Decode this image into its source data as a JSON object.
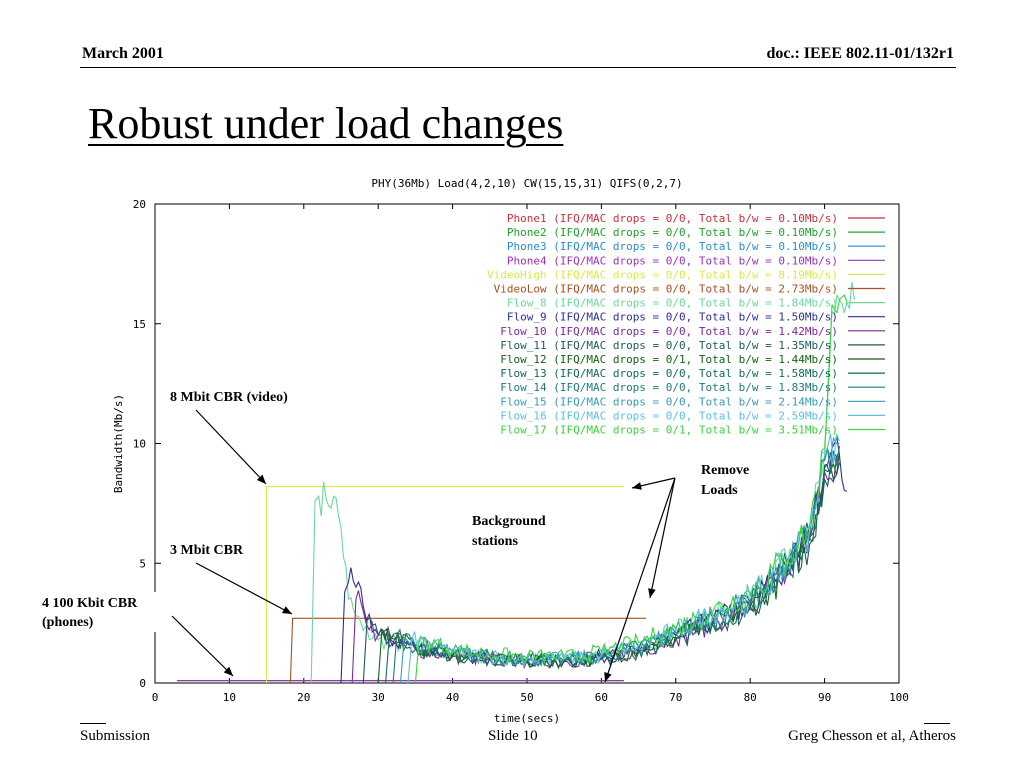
{
  "header": {
    "left": "March  2001",
    "right": "doc.: IEEE 802.11-01/132r1"
  },
  "slide_title": "Robust under load changes",
  "footer": {
    "left": "Submission",
    "center": "Slide 10",
    "right": "Greg Chesson et al, Atheros"
  },
  "annotations": [
    {
      "id": "video",
      "text": "8 Mbit CBR (video)"
    },
    {
      "id": "cbr3",
      "text": "3 Mbit CBR"
    },
    {
      "id": "phones",
      "line1": "4 100 Kbit CBR",
      "line2": "(phones)"
    },
    {
      "id": "background",
      "line1": "Background",
      "line2": "stations"
    },
    {
      "id": "remove",
      "line1": "Remove",
      "line2": "Loads"
    }
  ],
  "chart_data": {
    "type": "line",
    "title": "PHY(36Mb) Load(4,2,10) CW(15,15,31) QIFS(0,2,7)",
    "xlabel": "time(secs)",
    "ylabel": "Bandwidth(Mb/s)",
    "xlim": [
      0,
      100
    ],
    "ylim": [
      0,
      20
    ],
    "xticks": [
      0,
      10,
      20,
      30,
      40,
      50,
      60,
      70,
      80,
      90,
      100
    ],
    "yticks": [
      0,
      5,
      10,
      15,
      20
    ],
    "legend_position": "top-right",
    "series": [
      {
        "name": "Phone1",
        "legend": "Phone1 (IFQ/MAC drops = 0/0, Total b/w = 0.10Mb/s)",
        "color": "#c8323c",
        "x": [
          3,
          63
        ],
        "y": [
          0.1,
          0.1
        ]
      },
      {
        "name": "Phone2",
        "legend": "Phone2 (IFQ/MAC drops = 0/0, Total b/w = 0.10Mb/s)",
        "color": "#22a02a",
        "x": [
          3,
          63
        ],
        "y": [
          0.1,
          0.1
        ]
      },
      {
        "name": "Phone3",
        "legend": "Phone3 (IFQ/MAC drops = 0/0, Total b/w = 0.10Mb/s)",
        "color": "#2a8ad0",
        "x": [
          3,
          63
        ],
        "y": [
          0.1,
          0.1
        ]
      },
      {
        "name": "Phone4",
        "legend": "Phone4 (IFQ/MAC drops = 0/0, Total b/w = 0.10Mb/s)",
        "color": "#9a32b8",
        "x": [
          3,
          63
        ],
        "y": [
          0.1,
          0.1
        ]
      },
      {
        "name": "VideoHigh",
        "legend": "VideoHigh (IFQ/MAC drops = 0/0, Total b/w = 8.19Mb/s)",
        "color": "#d8e84a",
        "x": [
          15,
          15,
          63
        ],
        "y": [
          0,
          8.2,
          8.2
        ]
      },
      {
        "name": "VideoLow",
        "legend": "VideoLow (IFQ/MAC drops = 0/0, Total b/w = 2.73Mb/s)",
        "color": "#a8501e",
        "x": [
          18.2,
          18.5,
          66
        ],
        "y": [
          0,
          2.7,
          2.7
        ]
      },
      {
        "name": "Flow_8",
        "legend": "Flow_8 (IFQ/MAC drops = 0/0, Total b/w = 1.84Mb/s)",
        "color": "#6ad8a0",
        "x": [
          21,
          21.5,
          22,
          23,
          24,
          25,
          26,
          27,
          28,
          30,
          35,
          40,
          45,
          50,
          55,
          60,
          65,
          70,
          75,
          80,
          85,
          88,
          90,
          91,
          92,
          93,
          94
        ],
        "y": [
          0,
          7.6,
          7.8,
          7.7,
          7.8,
          6.5,
          3.5,
          2.8,
          2.2,
          1.8,
          1.5,
          1.2,
          1.1,
          1.0,
          1.0,
          1.1,
          1.5,
          2.2,
          2.8,
          3.5,
          5.0,
          6.5,
          9.5,
          15.5,
          16.0,
          15.9,
          16.0
        ]
      },
      {
        "name": "Flow_9",
        "legend": "Flow_9 (IFQ/MAC drops = 0/0, Total b/w = 1.50Mb/s)",
        "color": "#2e2e96",
        "x": [
          25,
          25.5,
          26,
          27,
          28,
          30,
          35,
          40,
          45,
          50,
          55,
          60,
          65,
          70,
          75,
          80,
          85,
          88,
          90,
          91,
          92,
          93
        ],
        "y": [
          0,
          3.8,
          4.2,
          4.0,
          3.2,
          2.0,
          1.5,
          1.2,
          1.0,
          1.0,
          0.9,
          1.1,
          1.4,
          2.0,
          2.6,
          3.3,
          4.8,
          6.2,
          9.0,
          9.8,
          9.5,
          8.0
        ]
      },
      {
        "name": "Flow_10",
        "legend": "Flow_10 (IFQ/MAC drops = 0/0, Total b/w = 1.42Mb/s)",
        "color": "#7a2a9a",
        "x": [
          26.5,
          27,
          28,
          30,
          35,
          40,
          45,
          50,
          55,
          60,
          65,
          70,
          75,
          80,
          85,
          88,
          90,
          92
        ],
        "y": [
          0,
          3.5,
          3.0,
          2.0,
          1.4,
          1.1,
          1.0,
          0.9,
          0.9,
          1.0,
          1.3,
          1.9,
          2.5,
          3.2,
          4.6,
          6.0,
          8.8,
          9.4
        ]
      },
      {
        "name": "Flow_11",
        "legend": "Flow_11 (IFQ/MAC drops = 0/0, Total b/w = 1.35Mb/s)",
        "color": "#1e5a5a",
        "x": [
          28,
          28.5,
          30,
          35,
          40,
          45,
          50,
          55,
          60,
          65,
          70,
          75,
          80,
          85,
          88,
          90,
          92
        ],
        "y": [
          0,
          2.6,
          2.0,
          1.4,
          1.1,
          1.0,
          0.9,
          0.9,
          1.0,
          1.3,
          1.8,
          2.4,
          3.1,
          4.5,
          5.8,
          8.5,
          9.2
        ]
      },
      {
        "name": "Flow_12",
        "legend": "Flow_12 (IFQ/MAC drops = 0/1, Total b/w = 1.44Mb/s)",
        "color": "#146414",
        "x": [
          30,
          30.5,
          35,
          40,
          45,
          50,
          55,
          60,
          65,
          70,
          75,
          80,
          85,
          88,
          90,
          92
        ],
        "y": [
          0,
          2.2,
          1.5,
          1.2,
          1.0,
          0.9,
          0.9,
          1.0,
          1.4,
          1.9,
          2.5,
          3.2,
          4.6,
          6.0,
          8.9,
          9.6
        ]
      },
      {
        "name": "Flow_13",
        "legend": "Flow_13 (IFQ/MAC drops = 0/0, Total b/w = 1.58Mb/s)",
        "color": "#126a5a",
        "x": [
          31,
          31.5,
          35,
          40,
          45,
          50,
          55,
          60,
          65,
          70,
          75,
          80,
          85,
          88,
          90,
          92
        ],
        "y": [
          0,
          2.0,
          1.5,
          1.2,
          1.1,
          1.0,
          0.9,
          1.0,
          1.4,
          2.0,
          2.6,
          3.3,
          4.7,
          6.1,
          9.1,
          9.7
        ]
      },
      {
        "name": "Flow_14",
        "legend": "Flow_14 (IFQ/MAC drops = 0/0, Total b/w = 1.83Mb/s)",
        "color": "#1e7a7a",
        "x": [
          32,
          32.5,
          35,
          40,
          45,
          50,
          55,
          60,
          65,
          70,
          75,
          80,
          85,
          88,
          90,
          92
        ],
        "y": [
          0,
          2.0,
          1.6,
          1.3,
          1.1,
          1.0,
          1.0,
          1.1,
          1.5,
          2.1,
          2.7,
          3.4,
          4.8,
          6.2,
          9.3,
          9.9
        ]
      },
      {
        "name": "Flow_15",
        "legend": "Flow_15 (IFQ/MAC drops = 0/0, Total b/w = 2.14Mb/s)",
        "color": "#3a9ab4",
        "x": [
          33,
          33.5,
          35,
          40,
          45,
          50,
          55,
          60,
          65,
          70,
          75,
          80,
          85,
          88,
          90,
          92
        ],
        "y": [
          0,
          1.9,
          1.6,
          1.3,
          1.1,
          1.0,
          1.0,
          1.1,
          1.5,
          2.1,
          2.8,
          3.5,
          4.9,
          6.3,
          9.4,
          10.0
        ]
      },
      {
        "name": "Flow_16",
        "legend": "Flow_16 (IFQ/MAC drops = 0/0, Total b/w = 2.59Mb/s)",
        "color": "#5ac0e0",
        "x": [
          34,
          34.5,
          40,
          45,
          50,
          55,
          60,
          65,
          70,
          75,
          80,
          85,
          88,
          90,
          92
        ],
        "y": [
          0,
          1.8,
          1.3,
          1.1,
          1.0,
          1.0,
          1.2,
          1.6,
          2.2,
          2.9,
          3.6,
          5.0,
          6.4,
          9.6,
          10.1
        ]
      },
      {
        "name": "Flow_17",
        "legend": "Flow_17 (IFQ/MAC drops = 0/1, Total b/w = 3.51Mb/s)",
        "color": "#3ad23a",
        "x": [
          35,
          35.5,
          40,
          45,
          50,
          55,
          60,
          65,
          70,
          75,
          80,
          85,
          88,
          90,
          91,
          92,
          93
        ],
        "y": [
          0,
          1.8,
          1.4,
          1.2,
          1.1,
          1.1,
          1.3,
          1.7,
          2.3,
          3.0,
          3.8,
          5.2,
          6.6,
          9.8,
          15.8,
          16.0,
          15.9
        ]
      }
    ]
  }
}
